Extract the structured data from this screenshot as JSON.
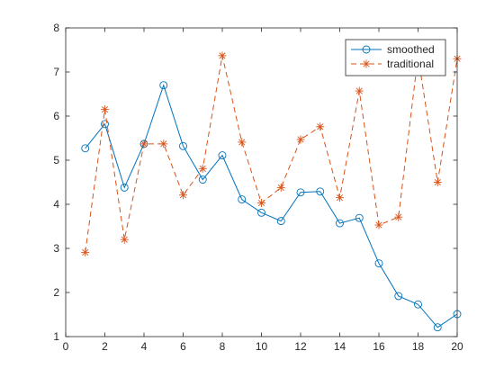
{
  "chart_data": {
    "type": "line",
    "title": "",
    "xlabel": "",
    "ylabel": "",
    "xlim": [
      0,
      20
    ],
    "ylim": [
      1,
      8
    ],
    "x_ticks": [
      0,
      2,
      4,
      6,
      8,
      10,
      12,
      14,
      16,
      18,
      20
    ],
    "y_ticks": [
      1,
      2,
      3,
      4,
      5,
      6,
      7,
      8
    ],
    "grid": false,
    "legend_position": "top-right",
    "x": [
      1,
      2,
      3,
      4,
      5,
      6,
      7,
      8,
      9,
      10,
      11,
      12,
      13,
      14,
      15,
      16,
      17,
      18,
      19,
      20
    ],
    "series": [
      {
        "name": "smoothed",
        "color": "#0072BD",
        "line_style": "solid",
        "marker": "circle",
        "values": [
          5.27,
          5.82,
          4.38,
          5.37,
          6.7,
          5.32,
          4.56,
          5.11,
          4.11,
          3.81,
          3.62,
          4.27,
          4.29,
          3.57,
          3.69,
          2.66,
          1.92,
          1.73,
          1.21,
          1.51
        ]
      },
      {
        "name": "traditional",
        "color": "#D95319",
        "line_style": "dashed",
        "marker": "asterisk",
        "values": [
          2.91,
          6.15,
          3.2,
          5.37,
          5.37,
          4.21,
          4.81,
          7.37,
          5.41,
          4.03,
          4.38,
          5.47,
          5.76,
          4.15,
          6.57,
          3.53,
          3.71,
          7.36,
          4.5,
          7.3
        ]
      }
    ]
  }
}
